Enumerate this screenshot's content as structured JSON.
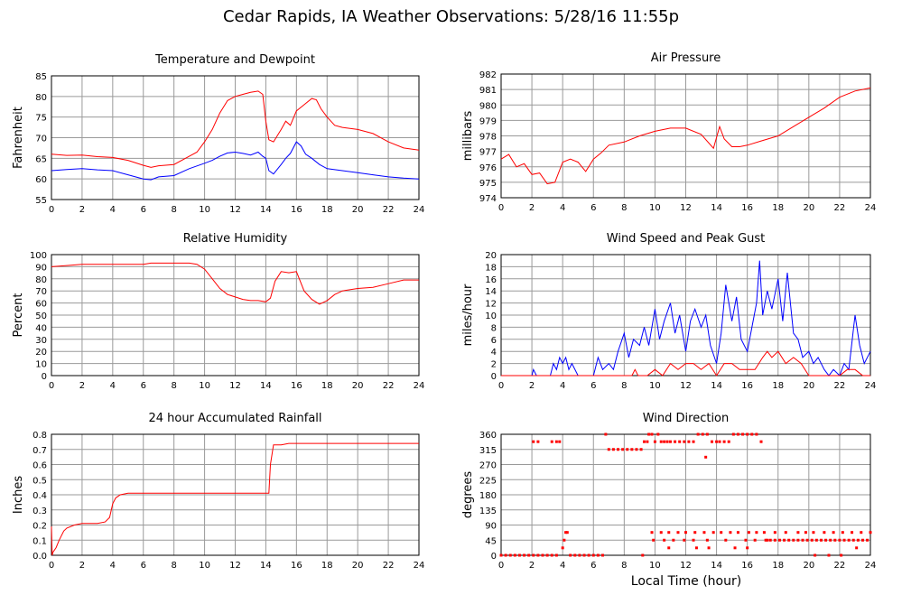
{
  "page": {
    "title": "Cedar Rapids, IA Weather Observations: 5/28/16 11:55p",
    "xlabel": "Local Time (hour)"
  },
  "colors": {
    "red": "#ff0000",
    "blue": "#0000ff",
    "grid": "#9a9a9a"
  },
  "chart_data": [
    {
      "id": "temp",
      "type": "line",
      "title": "Temperature and Dewpoint",
      "ylabel": "Fahrenheit",
      "xlim": [
        0,
        24
      ],
      "ylim": [
        55,
        85
      ],
      "xticks": [
        "0",
        "2",
        "4",
        "6",
        "8",
        "10",
        "12",
        "14",
        "16",
        "18",
        "20",
        "22",
        "24"
      ],
      "yticks": [
        "55",
        "60",
        "65",
        "70",
        "75",
        "80",
        "85"
      ],
      "grid": true,
      "series": [
        {
          "color": "#ff0000",
          "x": [
            0,
            1,
            2,
            3,
            4,
            5,
            6,
            6.5,
            7,
            8,
            9,
            9.5,
            10,
            10.5,
            11,
            11.5,
            12,
            12.5,
            13,
            13.5,
            13.8,
            14,
            14.2,
            14.5,
            15,
            15.3,
            15.6,
            16,
            16.5,
            17,
            17.3,
            17.6,
            18,
            18.5,
            19,
            20,
            21,
            22,
            23,
            24
          ],
          "y": [
            66,
            65.7,
            65.8,
            65.4,
            65.2,
            64.5,
            63.3,
            62.8,
            63.2,
            63.5,
            65.5,
            66.5,
            69,
            72,
            76,
            79,
            80,
            80.5,
            81,
            81.3,
            80.5,
            74,
            69.5,
            69,
            72,
            74,
            73,
            76.5,
            78,
            79.5,
            79.2,
            77,
            75,
            73,
            72.5,
            72,
            71,
            69,
            67.5,
            67
          ]
        },
        {
          "color": "#0000ff",
          "x": [
            0,
            1,
            2,
            3,
            4,
            5,
            6,
            6.5,
            7,
            8,
            9,
            10,
            10.5,
            11,
            11.5,
            12,
            12.5,
            13,
            13.5,
            13.8,
            14,
            14.2,
            14.5,
            15,
            15.3,
            15.6,
            16,
            16.3,
            16.6,
            17,
            17.5,
            18,
            19,
            20,
            21,
            22,
            23,
            24
          ],
          "y": [
            62,
            62.3,
            62.5,
            62.2,
            62,
            61,
            60,
            59.8,
            60.5,
            60.8,
            62.5,
            63.8,
            64.5,
            65.5,
            66.3,
            66.5,
            66.2,
            65.8,
            66.5,
            65.5,
            65,
            62,
            61.2,
            63.5,
            65,
            66.2,
            69,
            68,
            66,
            65,
            63.5,
            62.5,
            62,
            61.5,
            61,
            60.5,
            60.2,
            60
          ]
        }
      ]
    },
    {
      "id": "pressure",
      "type": "line",
      "title": "Air Pressure",
      "ylabel": "millibars",
      "xlim": [
        0,
        24
      ],
      "ylim": [
        974,
        982
      ],
      "xticks": [
        "0",
        "2",
        "4",
        "6",
        "8",
        "10",
        "12",
        "14",
        "16",
        "18",
        "20",
        "22",
        "24"
      ],
      "yticks": [
        "974",
        "975",
        "976",
        "977",
        "978",
        "979",
        "980",
        "981",
        "982"
      ],
      "grid": true,
      "series": [
        {
          "color": "#ff0000",
          "x": [
            0,
            0.5,
            1,
            1.5,
            2,
            2.5,
            3,
            3.5,
            4,
            4.5,
            5,
            5.5,
            6,
            6.5,
            7,
            8,
            9,
            10,
            11,
            12,
            13,
            13.8,
            14.2,
            14.5,
            15,
            15.5,
            16,
            17,
            18,
            19,
            20,
            21,
            22,
            23,
            24
          ],
          "y": [
            976.5,
            976.8,
            976,
            976.2,
            975.5,
            975.6,
            974.9,
            975,
            976.3,
            976.5,
            976.3,
            975.7,
            976.5,
            976.9,
            977.4,
            977.6,
            978,
            978.3,
            978.5,
            978.5,
            978.1,
            977.2,
            978.6,
            977.8,
            977.3,
            977.3,
            977.4,
            977.7,
            978,
            978.6,
            979.2,
            979.8,
            980.5,
            980.9,
            981.1
          ]
        }
      ]
    },
    {
      "id": "humidity",
      "type": "line",
      "title": "Relative Humidity",
      "ylabel": "Percent",
      "xlim": [
        0,
        24
      ],
      "ylim": [
        0,
        100
      ],
      "xticks": [
        "0",
        "2",
        "4",
        "6",
        "8",
        "10",
        "12",
        "14",
        "16",
        "18",
        "20",
        "22",
        "24"
      ],
      "yticks": [
        "0",
        "10",
        "20",
        "30",
        "40",
        "50",
        "60",
        "70",
        "80",
        "90",
        "100"
      ],
      "grid": true,
      "series": [
        {
          "color": "#ff0000",
          "x": [
            0,
            1,
            2,
            3,
            4,
            5,
            6,
            6.5,
            7,
            8,
            9,
            9.5,
            10,
            10.5,
            11,
            11.5,
            12,
            12.5,
            13,
            13.5,
            14,
            14.3,
            14.6,
            15,
            15.5,
            16,
            16.5,
            17,
            17.5,
            18,
            18.5,
            19,
            20,
            21,
            22,
            23,
            24
          ],
          "y": [
            90,
            91,
            92,
            92,
            92,
            92,
            92,
            93,
            93,
            93,
            93,
            92,
            88,
            80,
            72,
            67,
            65,
            63,
            62,
            62,
            61,
            64,
            78,
            86,
            85,
            86,
            70,
            63,
            59,
            62,
            67,
            70,
            72,
            73,
            76,
            79,
            79
          ]
        }
      ]
    },
    {
      "id": "wind",
      "type": "line",
      "title": "Wind Speed and Peak Gust",
      "ylabel": "miles/hour",
      "xlim": [
        0,
        24
      ],
      "ylim": [
        0,
        20
      ],
      "xticks": [
        "0",
        "2",
        "4",
        "6",
        "8",
        "10",
        "12",
        "14",
        "16",
        "18",
        "20",
        "22",
        "24"
      ],
      "yticks": [
        "0",
        "2",
        "4",
        "6",
        "8",
        "10",
        "12",
        "14",
        "16",
        "18",
        "20"
      ],
      "grid": true,
      "series": [
        {
          "color": "#0000ff",
          "x": [
            0,
            2,
            2.1,
            2.3,
            2.5,
            3.2,
            3.4,
            3.6,
            3.8,
            4,
            4.2,
            4.4,
            4.6,
            5,
            6,
            6.3,
            6.6,
            7,
            7.3,
            7.6,
            8,
            8.3,
            8.6,
            9,
            9.3,
            9.6,
            10,
            10.3,
            10.6,
            11,
            11.3,
            11.6,
            12,
            12.3,
            12.6,
            13,
            13.3,
            13.6,
            14,
            14.3,
            14.6,
            15,
            15.3,
            15.6,
            16,
            16.3,
            16.6,
            16.8,
            17,
            17.3,
            17.6,
            18,
            18.3,
            18.6,
            19,
            19.3,
            19.6,
            20,
            20.3,
            20.6,
            21,
            21.3,
            21.6,
            22,
            22.3,
            22.6,
            23,
            23.3,
            23.6,
            24
          ],
          "y": [
            0,
            0,
            1,
            0,
            0,
            0,
            2,
            1,
            3,
            2,
            3,
            1,
            2,
            0,
            0,
            3,
            1,
            2,
            1,
            4,
            7,
            3,
            6,
            5,
            8,
            5,
            11,
            6,
            9,
            12,
            7,
            10,
            4,
            9,
            11,
            8,
            10,
            5,
            2,
            7,
            15,
            9,
            13,
            6,
            4,
            8,
            12,
            19,
            10,
            14,
            11,
            16,
            9,
            17,
            7,
            6,
            3,
            4,
            2,
            3,
            1,
            0,
            1,
            0,
            2,
            1,
            10,
            5,
            2,
            4
          ]
        },
        {
          "color": "#ff0000",
          "x": [
            0,
            8.5,
            8.7,
            8.9,
            9.1,
            9.5,
            10,
            10.5,
            11,
            11.5,
            12,
            12.5,
            13,
            13.5,
            14,
            14.5,
            15,
            15.5,
            16,
            16.5,
            17,
            17.3,
            17.6,
            18,
            18.5,
            19,
            19.5,
            20,
            22,
            22.5,
            23,
            23.5,
            24
          ],
          "y": [
            0,
            0,
            1,
            0,
            0,
            0,
            1,
            0,
            2,
            1,
            2,
            2,
            1,
            2,
            0,
            2,
            2,
            1,
            1,
            1,
            3,
            4,
            3,
            4,
            2,
            3,
            2,
            0,
            0,
            1,
            1,
            0,
            0
          ]
        }
      ]
    },
    {
      "id": "rain",
      "type": "line",
      "title": "24 hour Accumulated Rainfall",
      "ylabel": "Inches",
      "xlim": [
        0,
        24
      ],
      "ylim": [
        0,
        0.8
      ],
      "xticks": [
        "0",
        "2",
        "4",
        "6",
        "8",
        "10",
        "12",
        "14",
        "16",
        "18",
        "20",
        "22",
        "24"
      ],
      "yticks": [
        "0.0",
        "0.1",
        "0.2",
        "0.3",
        "0.4",
        "0.5",
        "0.6",
        "0.7",
        "0.8"
      ],
      "grid": true,
      "series": [
        {
          "color": "#ff0000",
          "x": [
            0,
            0.05,
            0.1,
            0.3,
            0.5,
            0.8,
            1,
            1.5,
            2,
            3,
            3.5,
            3.8,
            4,
            4.2,
            4.5,
            5,
            6,
            8,
            10,
            12,
            14,
            14.2,
            14.3,
            14.5,
            15,
            15.5,
            16,
            18,
            20,
            22,
            24
          ],
          "y": [
            0.19,
            0.0,
            0.02,
            0.05,
            0.1,
            0.16,
            0.18,
            0.2,
            0.21,
            0.21,
            0.22,
            0.25,
            0.34,
            0.38,
            0.4,
            0.41,
            0.41,
            0.41,
            0.41,
            0.41,
            0.41,
            0.41,
            0.6,
            0.73,
            0.73,
            0.74,
            0.74,
            0.74,
            0.74,
            0.74,
            0.74
          ]
        }
      ]
    },
    {
      "id": "direction",
      "type": "scatter",
      "title": "Wind Direction",
      "ylabel": "degrees",
      "xlim": [
        0,
        24
      ],
      "ylim": [
        0,
        360
      ],
      "xticks": [
        "0",
        "2",
        "4",
        "6",
        "8",
        "10",
        "12",
        "14",
        "16",
        "18",
        "20",
        "22",
        "24"
      ],
      "yticks": [
        "0",
        "45",
        "90",
        "135",
        "180",
        "225",
        "270",
        "315",
        "360"
      ],
      "grid": true,
      "series": [
        {
          "color": "#ff0000",
          "x": [
            0,
            0.3,
            0.6,
            0.9,
            1.2,
            1.5,
            1.8,
            2.1,
            2.4,
            2.7,
            3.0,
            3.3,
            3.6,
            2.1,
            2.4,
            3.3,
            3.6,
            3.8,
            4.0,
            4.1,
            4.2,
            4.3,
            4.5,
            4.8,
            5.1,
            5.4,
            5.7,
            6.0,
            6.3,
            6.6,
            6.8,
            7.0,
            7.3,
            7.6,
            7.9,
            8.2,
            8.5,
            8.8,
            9.1,
            9.3,
            9.5,
            9.6,
            9.8,
            10.0,
            10.2,
            10.4,
            10.6,
            10.8,
            11.0,
            11.3,
            11.6,
            11.9,
            12.2,
            12.5,
            12.8,
            13.1,
            13.4,
            13.7,
            14.0,
            14.2,
            14.5,
            14.8,
            15.1,
            15.4,
            15.7,
            16.0,
            16.3,
            16.6,
            16.9,
            17.2,
            17.5,
            17.8,
            18.1,
            18.4,
            18.7,
            19.0,
            19.3,
            19.6,
            19.9,
            20.2,
            20.5,
            20.8,
            21.1,
            21.4,
            21.7,
            22.0,
            22.3,
            22.6,
            22.9,
            23.2,
            23.5,
            23.8,
            9.8,
            10.4,
            10.9,
            11.5,
            12.0,
            12.6,
            13.2,
            13.8,
            14.3,
            14.9,
            15.4,
            16.1,
            16.6,
            17.1,
            9.9,
            10.6,
            11.2,
            11.9,
            12.5,
            13.4,
            14.6,
            15.9,
            16.5,
            17.3,
            17.8,
            18.5,
            19.3,
            19.8,
            20.3,
            21.0,
            21.6,
            22.2,
            22.8,
            23.4,
            24.0,
            9.2,
            10.9,
            12.7,
            13.5,
            13.3,
            15.2,
            16.0,
            20.4,
            21.3,
            22.1,
            23.1
          ],
          "y": [
            0,
            0,
            0,
            0,
            0,
            0,
            0,
            0,
            0,
            0,
            0,
            0,
            0,
            338,
            338,
            338,
            338,
            338,
            22,
            45,
            68,
            68,
            0,
            0,
            0,
            0,
            0,
            0,
            0,
            0,
            360,
            315,
            315,
            315,
            315,
            315,
            315,
            315,
            315,
            338,
            338,
            360,
            360,
            338,
            360,
            338,
            338,
            338,
            338,
            338,
            338,
            338,
            338,
            338,
            360,
            360,
            360,
            338,
            338,
            338,
            338,
            338,
            360,
            360,
            360,
            360,
            360,
            360,
            338,
            45,
            45,
            45,
            45,
            45,
            45,
            45,
            45,
            45,
            45,
            45,
            45,
            45,
            45,
            45,
            45,
            45,
            45,
            45,
            45,
            45,
            45,
            45,
            68,
            68,
            68,
            68,
            68,
            68,
            68,
            68,
            68,
            68,
            68,
            68,
            68,
            68,
            45,
            45,
            45,
            45,
            45,
            45,
            45,
            45,
            45,
            45,
            68,
            68,
            68,
            68,
            68,
            68,
            68,
            68,
            68,
            68,
            68,
            0,
            22,
            22,
            22,
            292,
            22,
            22,
            0,
            0,
            0,
            22
          ]
        }
      ]
    }
  ]
}
